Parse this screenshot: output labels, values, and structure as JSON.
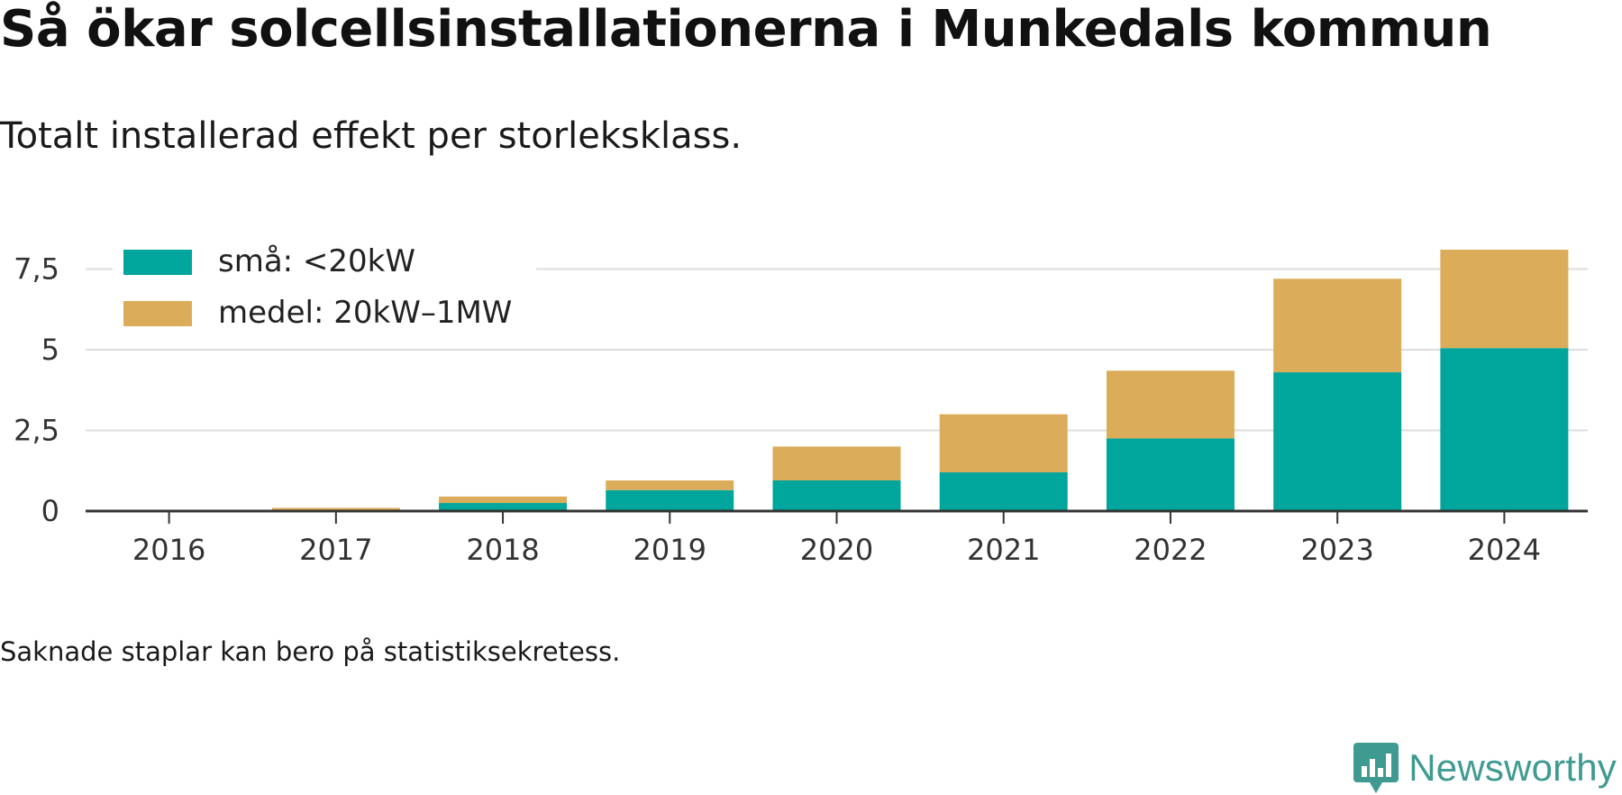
{
  "header": {
    "title": "Så ökar solcellsinstallationerna i Munkedals kommun",
    "subtitle": "Totalt installerad effekt per storleksklass."
  },
  "footer": {
    "note": "Saknade staplar kan bero på statistiksekretess.",
    "brand": "Newsworthy",
    "brand_icon": "newsworthy-logo-icon",
    "brand_color": "#3f9a91"
  },
  "chart_data": {
    "type": "bar",
    "stacked": true,
    "categories": [
      "2016",
      "2017",
      "2018",
      "2019",
      "2020",
      "2021",
      "2022",
      "2023",
      "2024"
    ],
    "series": [
      {
        "name": "små: <20kW",
        "color": "#00a59b",
        "values": [
          0.01,
          0.03,
          0.25,
          0.65,
          0.95,
          1.2,
          2.25,
          4.3,
          5.05
        ]
      },
      {
        "name": "medel: 20kW–1MW",
        "color": "#dbad5a",
        "values": [
          0,
          0.07,
          0.2,
          0.3,
          1.05,
          1.8,
          2.1,
          2.9,
          3.05
        ]
      }
    ],
    "yticks": [
      "0",
      "2,5",
      "5",
      "7,5"
    ],
    "ytick_values": [
      0,
      2.5,
      5,
      7.5
    ],
    "ylim": [
      0,
      8.3
    ],
    "xlabel": "",
    "ylabel": "",
    "grid": true,
    "legend_position": "top-left"
  }
}
